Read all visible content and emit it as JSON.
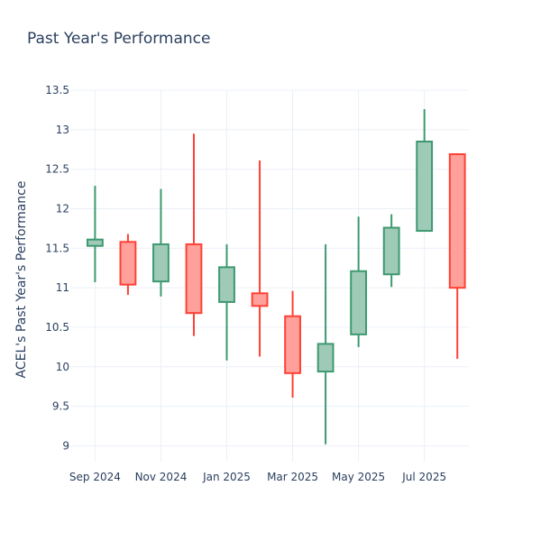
{
  "chart_data": {
    "type": "candlestick",
    "title": "Past Year's Performance",
    "xlabel": "",
    "ylabel": "ACEL's Past Year's Performance",
    "ylim": [
      8.8,
      13.5
    ],
    "y_ticks": [
      9,
      9.5,
      10,
      10.5,
      11,
      11.5,
      12,
      12.5,
      13,
      13.5
    ],
    "y_tick_labels": [
      "9",
      "9.5",
      "10",
      "10.5",
      "11",
      "11.5",
      "12",
      "12.5",
      "13",
      "13.5"
    ],
    "x_ticks": [
      0,
      2,
      4,
      6,
      8,
      10
    ],
    "x_tick_labels": [
      "Sep 2024",
      "Nov 2024",
      "Jan 2025",
      "Mar 2025",
      "May 2025",
      "Jul 2025"
    ],
    "xlim": [
      -0.75,
      11.35
    ],
    "grid": true,
    "colors": {
      "increasing_line": "#3d9970",
      "increasing_fill": "#9ecab7",
      "decreasing_line": "#ff4136",
      "decreasing_fill": "#ffa09a"
    },
    "candles": [
      {
        "month": "2024-09",
        "open": 11.53,
        "high": 12.29,
        "low": 11.07,
        "close": 11.61
      },
      {
        "month": "2024-10",
        "open": 11.58,
        "high": 11.68,
        "low": 10.91,
        "close": 11.04
      },
      {
        "month": "2024-11",
        "open": 11.08,
        "high": 12.25,
        "low": 10.89,
        "close": 11.55
      },
      {
        "month": "2024-12",
        "open": 11.55,
        "high": 12.95,
        "low": 10.39,
        "close": 10.68
      },
      {
        "month": "2025-01",
        "open": 10.82,
        "high": 11.55,
        "low": 10.08,
        "close": 11.26
      },
      {
        "month": "2025-02",
        "open": 10.93,
        "high": 12.61,
        "low": 10.13,
        "close": 10.77
      },
      {
        "month": "2025-03",
        "open": 10.64,
        "high": 10.96,
        "low": 9.61,
        "close": 9.92
      },
      {
        "month": "2025-04",
        "open": 9.94,
        "high": 11.55,
        "low": 9.02,
        "close": 10.29
      },
      {
        "month": "2025-05",
        "open": 10.41,
        "high": 11.9,
        "low": 10.25,
        "close": 11.21
      },
      {
        "month": "2025-06",
        "open": 11.17,
        "high": 11.93,
        "low": 11.01,
        "close": 11.76
      },
      {
        "month": "2025-07",
        "open": 11.72,
        "high": 13.26,
        "low": 11.72,
        "close": 12.85
      },
      {
        "month": "2025-08",
        "open": 12.69,
        "high": 12.69,
        "low": 10.1,
        "close": 11.0
      }
    ]
  }
}
